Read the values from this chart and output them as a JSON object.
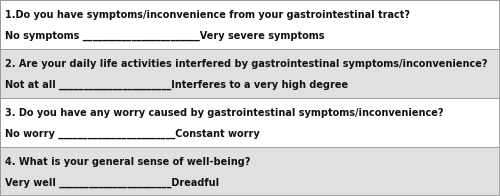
{
  "figsize": [
    5.0,
    1.96
  ],
  "dpi": 100,
  "bg_outer": "#d0d0d0",
  "row_bg_colors": [
    "#ffffff",
    "#e0e0e0",
    "#ffffff",
    "#e0e0e0"
  ],
  "border_color": "#999999",
  "questions": [
    {
      "q": "1.Do you have symptoms/inconvenience from your gastrointestinal tract?",
      "a_left": "No symptoms",
      "a_right": "Very severe symptoms",
      "line": " ________________________"
    },
    {
      "q": "2. Are your daily life activities interfered by gastrointestinal symptoms/inconvenience?",
      "a_left": "Not at all",
      "a_right": "Interferes to a very high degree",
      "line": " _______________________"
    },
    {
      "q": "3. Do you have any worry caused by gastrointestinal symptoms/inconvenience?",
      "a_left": "No worry",
      "a_right": "Constant worry",
      "line": " ________________________"
    },
    {
      "q": "4. What is your general sense of well-being?",
      "a_left": "Very well",
      "a_right": "Dreadful",
      "line": " _______________________"
    }
  ],
  "q_fontsize": 7.0,
  "a_fontsize": 7.0,
  "text_color": "#111111"
}
